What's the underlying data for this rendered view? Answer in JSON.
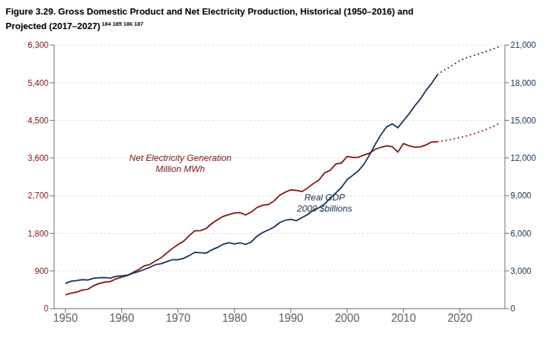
{
  "chart_data": {
    "type": "line",
    "title": "Figure 3.29. Gross Domestic Product and Net Electricity Production, Historical (1950–2016) and\nProjected (2017–2027)",
    "title_superscript": "184 185 186 187",
    "x": [
      1950,
      1951,
      1952,
      1953,
      1954,
      1955,
      1956,
      1957,
      1958,
      1959,
      1960,
      1961,
      1962,
      1963,
      1964,
      1965,
      1966,
      1967,
      1968,
      1969,
      1970,
      1971,
      1972,
      1973,
      1974,
      1975,
      1976,
      1977,
      1978,
      1979,
      1980,
      1981,
      1982,
      1983,
      1984,
      1985,
      1986,
      1987,
      1988,
      1989,
      1990,
      1991,
      1992,
      1993,
      1994,
      1995,
      1996,
      1997,
      1998,
      1999,
      2000,
      2001,
      2002,
      2003,
      2004,
      2005,
      2006,
      2007,
      2008,
      2009,
      2010,
      2011,
      2012,
      2013,
      2014,
      2015,
      2016,
      2017,
      2018,
      2019,
      2020,
      2021,
      2022,
      2023,
      2024,
      2025,
      2026,
      2027
    ],
    "series": [
      {
        "color": "#8b1a1a",
        "line_style": "solid",
        "values": [
          329,
          370,
          395,
          443,
          462,
          547,
          601,
          633,
          648,
          710,
          754,
          791,
          862,
          931,
          1024,
          1055,
          1144,
          1214,
          1329,
          1439,
          1532,
          1613,
          1750,
          1861,
          1867,
          1918,
          2037,
          2124,
          2206,
          2247,
          2286,
          2295,
          2241,
          2310,
          2416,
          2470,
          2487,
          2569,
          2704,
          2784,
          2837,
          2828,
          2797,
          2885,
          2989,
          3075,
          3244,
          3308,
          3457,
          3482,
          3638,
          3614,
          3620,
          3673,
          3717,
          3811,
          3856,
          3892,
          3873,
          3742,
          3946,
          3893,
          3858,
          3868,
          3913,
          3985,
          3988,
          null,
          null,
          null,
          null,
          null,
          null,
          null,
          null,
          null,
          null,
          null
        ]
      },
      {
        "color": "#8b1a1a",
        "line_style": "dotted",
        "values": [
          null,
          null,
          null,
          null,
          null,
          null,
          null,
          null,
          null,
          null,
          null,
          null,
          null,
          null,
          null,
          null,
          null,
          null,
          null,
          null,
          null,
          null,
          null,
          null,
          null,
          null,
          null,
          null,
          null,
          null,
          null,
          null,
          null,
          null,
          null,
          null,
          null,
          null,
          null,
          null,
          null,
          null,
          null,
          null,
          null,
          null,
          null,
          null,
          null,
          null,
          null,
          null,
          null,
          null,
          null,
          null,
          null,
          null,
          null,
          null,
          null,
          null,
          null,
          null,
          null,
          null,
          3988,
          4010,
          4030,
          4060,
          4090,
          4120,
          4160,
          4200,
          4250,
          4300,
          4360,
          4430
        ]
      },
      {
        "color": "#1a3a5c",
        "line_style": "solid",
        "axis": "y2",
        "values": [
          2006,
          2184,
          2239,
          2313,
          2280,
          2415,
          2453,
          2469,
          2432,
          2568,
          2617,
          2665,
          2823,
          2950,
          3118,
          3299,
          3503,
          3580,
          3745,
          3900,
          3898,
          4007,
          4228,
          4490,
          4454,
          4427,
          4684,
          4876,
          5130,
          5253,
          5161,
          5241,
          5111,
          5316,
          5768,
          6054,
          6264,
          6490,
          6843,
          7040,
          7112,
          7012,
          7259,
          7493,
          7836,
          8032,
          8329,
          8804,
          9217,
          9671,
          10285,
          10622,
          10978,
          11511,
          12274,
          13094,
          13856,
          14477,
          14719,
          14419,
          14964,
          15518,
          16155,
          16692,
          17393,
          17947,
          18624,
          null,
          null,
          null,
          null,
          null,
          null,
          null,
          null,
          null,
          null,
          null
        ]
      },
      {
        "color": "#1a3a5c",
        "line_style": "dotted",
        "axis": "y2",
        "values": [
          null,
          null,
          null,
          null,
          null,
          null,
          null,
          null,
          null,
          null,
          null,
          null,
          null,
          null,
          null,
          null,
          null,
          null,
          null,
          null,
          null,
          null,
          null,
          null,
          null,
          null,
          null,
          null,
          null,
          null,
          null,
          null,
          null,
          null,
          null,
          null,
          null,
          null,
          null,
          null,
          null,
          null,
          null,
          null,
          null,
          null,
          null,
          null,
          null,
          null,
          null,
          null,
          null,
          null,
          null,
          null,
          null,
          null,
          null,
          null,
          null,
          null,
          null,
          null,
          null,
          null,
          18624,
          18950,
          19200,
          19480,
          19750,
          19970,
          20100,
          20250,
          20400,
          20550,
          20700,
          20900
        ]
      }
    ],
    "xlim": [
      1948,
      2028
    ],
    "xticks": [
      1950,
      1960,
      1970,
      1980,
      1990,
      2000,
      2010,
      2020
    ],
    "ylim": [
      0,
      6300
    ],
    "yticks": [
      0,
      900,
      {
        "value": 1800,
        "label": "1,800"
      },
      {
        "value": 2700,
        "label": "2,700"
      },
      {
        "value": 3600,
        "label": "3,600"
      },
      {
        "value": 4500,
        "label": "4,500"
      },
      {
        "value": 5400,
        "label": "5,400"
      },
      {
        "value": 6300,
        "label": "6,300"
      }
    ],
    "y2lim": [
      0,
      21000
    ],
    "y2ticks": [
      0,
      {
        "value": 3000,
        "label": "3,000"
      },
      {
        "value": 6000,
        "label": "6,000"
      },
      {
        "value": 9000,
        "label": "9,000"
      },
      {
        "value": 12000,
        "label": "12,000"
      },
      {
        "value": 15000,
        "label": "15,000"
      },
      {
        "value": 18000,
        "label": "18,000"
      },
      {
        "value": 21000,
        "label": "21,000"
      }
    ],
    "grid": true,
    "annotations": [
      {
        "text": "Net Electricity Generation\nMillion MWh",
        "color": "#8b1a1a"
      },
      {
        "text": "Real GDP\n2009 $billions",
        "color": "#1a3a5c"
      }
    ]
  }
}
